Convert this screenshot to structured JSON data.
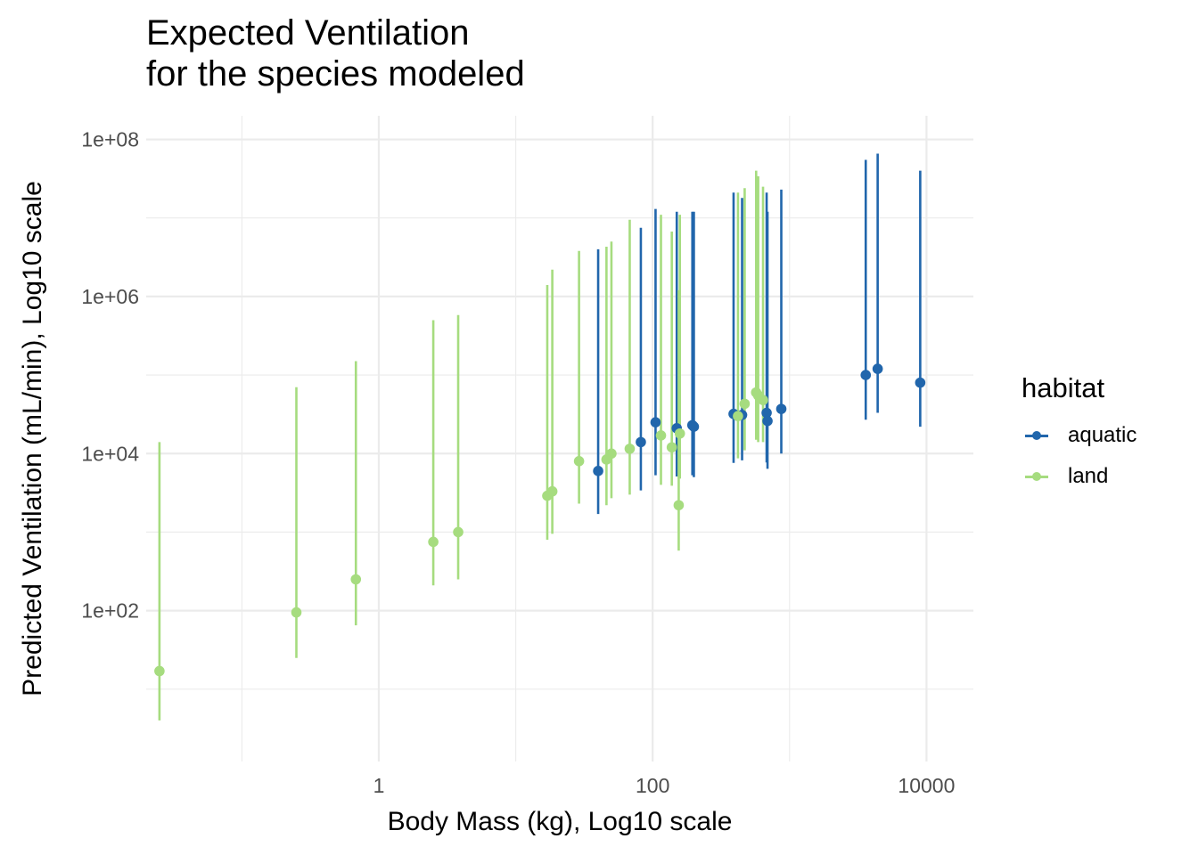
{
  "title": {
    "line1": "Expected Ventilation",
    "line2": "for the species modeled"
  },
  "colors": {
    "aquatic": "#2166ac",
    "land": "#a6dc7f",
    "grid": "#ebebeb"
  },
  "legend": {
    "title": "habitat",
    "items": [
      {
        "label": "aquatic",
        "color": "#2166ac"
      },
      {
        "label": "land",
        "color": "#a6dc7f"
      }
    ]
  },
  "chart_data": {
    "type": "scatter",
    "xlabel": "Body Mass (kg), Log10 scale",
    "ylabel": "Predicted Ventilation (mL/min), Log10 scale",
    "x_scale": "log10",
    "y_scale": "log10",
    "xlim": [
      0.02,
      22000
    ],
    "ylim": [
      1.2,
      200000000
    ],
    "x_ticks": [
      {
        "value": 1,
        "label": "1"
      },
      {
        "value": 100,
        "label": "100"
      },
      {
        "value": 10000,
        "label": "10000"
      }
    ],
    "y_ticks": [
      {
        "value": 100,
        "label": "1e+02"
      },
      {
        "value": 10000,
        "label": "1e+04"
      },
      {
        "value": 1000000,
        "label": "1e+06"
      },
      {
        "value": 100000000,
        "label": "1e+08"
      }
    ],
    "grid": true,
    "legend_position": "right",
    "series": [
      {
        "name": "aquatic",
        "points": [
          {
            "x": 40,
            "y": 6000,
            "lo": 1700,
            "hi": 4000000
          },
          {
            "x": 82,
            "y": 14000,
            "lo": 3400,
            "hi": 7500000
          },
          {
            "x": 105,
            "y": 25000,
            "lo": 5300,
            "hi": 13000000
          },
          {
            "x": 150,
            "y": 21000,
            "lo": 5100,
            "hi": 12000000
          },
          {
            "x": 195,
            "y": 23000,
            "lo": 5300,
            "hi": 12000000
          },
          {
            "x": 200,
            "y": 22000,
            "lo": 5000,
            "hi": 12000000
          },
          {
            "x": 390,
            "y": 32000,
            "lo": 7600,
            "hi": 21000000
          },
          {
            "x": 450,
            "y": 31000,
            "lo": 8200,
            "hi": 18000000
          },
          {
            "x": 680,
            "y": 33000,
            "lo": 7700,
            "hi": 21000000
          },
          {
            "x": 690,
            "y": 26000,
            "lo": 6400,
            "hi": 12000000
          },
          {
            "x": 870,
            "y": 37000,
            "lo": 10000,
            "hi": 23000000
          },
          {
            "x": 3600,
            "y": 100000,
            "lo": 27000,
            "hi": 55000000
          },
          {
            "x": 4400,
            "y": 120000,
            "lo": 33000,
            "hi": 66000000
          },
          {
            "x": 9000,
            "y": 80000,
            "lo": 22000,
            "hi": 40000000
          }
        ]
      },
      {
        "name": "land",
        "points": [
          {
            "x": 0.025,
            "y": 17,
            "lo": 4,
            "hi": 14000
          },
          {
            "x": 0.25,
            "y": 95,
            "lo": 25,
            "hi": 70000
          },
          {
            "x": 0.68,
            "y": 250,
            "lo": 65,
            "hi": 150000
          },
          {
            "x": 2.5,
            "y": 750,
            "lo": 210,
            "hi": 500000
          },
          {
            "x": 3.8,
            "y": 1000,
            "lo": 250,
            "hi": 580000
          },
          {
            "x": 17,
            "y": 2900,
            "lo": 800,
            "hi": 1400000
          },
          {
            "x": 18.5,
            "y": 3300,
            "lo": 950,
            "hi": 2200000
          },
          {
            "x": 29,
            "y": 8000,
            "lo": 2300,
            "hi": 3800000
          },
          {
            "x": 46,
            "y": 8400,
            "lo": 2200,
            "hi": 4300000
          },
          {
            "x": 50,
            "y": 10000,
            "lo": 2700,
            "hi": 5000000
          },
          {
            "x": 68,
            "y": 11500,
            "lo": 3000,
            "hi": 9500000
          },
          {
            "x": 115,
            "y": 17000,
            "lo": 4000,
            "hi": 11000000
          },
          {
            "x": 138,
            "y": 12000,
            "lo": 3900,
            "hi": 6700000
          },
          {
            "x": 158,
            "y": 18000,
            "lo": 4800,
            "hi": 11000000
          },
          {
            "x": 155,
            "y": 2200,
            "lo": 580,
            "hi": 1200000
          },
          {
            "x": 420,
            "y": 30000,
            "lo": 8700,
            "hi": 21000000
          },
          {
            "x": 470,
            "y": 43000,
            "lo": 11000,
            "hi": 24000000
          },
          {
            "x": 570,
            "y": 60000,
            "lo": 15000,
            "hi": 40000000
          },
          {
            "x": 590,
            "y": 55000,
            "lo": 14000,
            "hi": 34000000
          },
          {
            "x": 640,
            "y": 48000,
            "lo": 14000,
            "hi": 25000000
          }
        ]
      }
    ]
  }
}
